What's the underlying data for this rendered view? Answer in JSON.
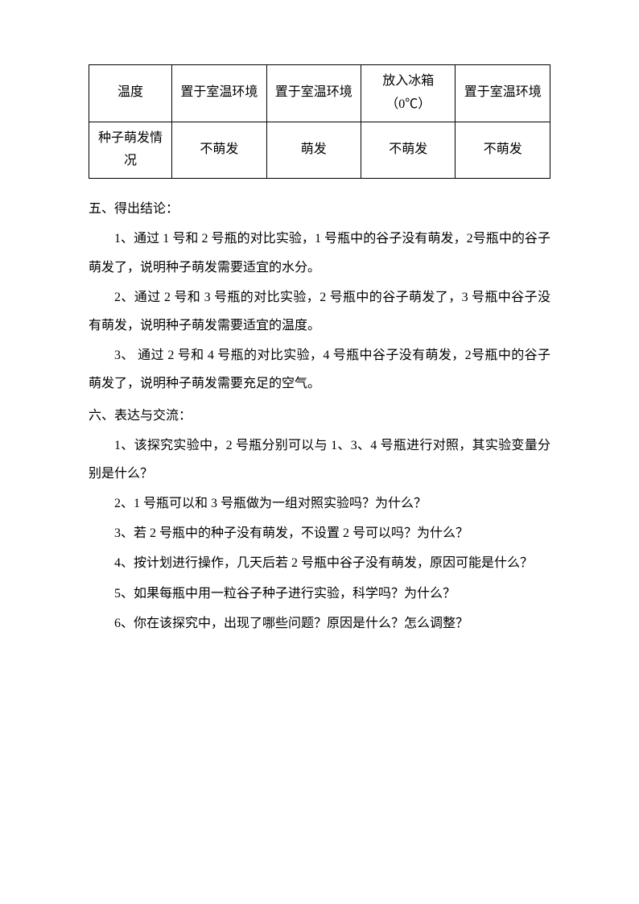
{
  "table": {
    "row1": {
      "label": "温度",
      "c1": "置于室温环境",
      "c2": "置于室温环境",
      "c3": "放入冰箱（0℃）",
      "c4": "置于室温环境"
    },
    "row2": {
      "label": "种子萌发情况",
      "c1": "不萌发",
      "c2": "萌发",
      "c3": "不萌发",
      "c4": "不萌发"
    }
  },
  "section5": {
    "heading": "五、得出结论：",
    "p1": "1、通过 1 号和 2 号瓶的对比实验，1 号瓶中的谷子没有萌发，2号瓶中的谷子萌发了，说明种子萌发需要适宜的水分。",
    "p2": "2、通过 2 号和 3 号瓶的对比实验，2 号瓶中的谷子萌发了，3 号瓶中谷子没有萌发，说明种子萌发需要适宜的温度。",
    "p3": "3、 通过 2 号和 4 号瓶的对比实验，4 号瓶中谷子没有萌发，2号瓶中的谷子萌发了，说明种子萌发需要充足的空气。"
  },
  "section6": {
    "heading": "六、表达与交流：",
    "p1": "1、该探究实验中，2 号瓶分别可以与 1、3、4 号瓶进行对照，其实验变量分别是什么？",
    "p2": "2、1 号瓶可以和 3 号瓶做为一组对照实验吗？为什么？",
    "p3": "3、若 2 号瓶中的种子没有萌发，不设置 2 号可以吗？为什么？",
    "p4": "4、按计划进行操作，几天后若 2 号瓶中谷子没有萌发，原因可能是什么？",
    "p5": "5、如果每瓶中用一粒谷子种子进行实验，科学吗？为什么？",
    "p6": "6、你在该探究中，出现了哪些问题？原因是什么？怎么调整？"
  }
}
